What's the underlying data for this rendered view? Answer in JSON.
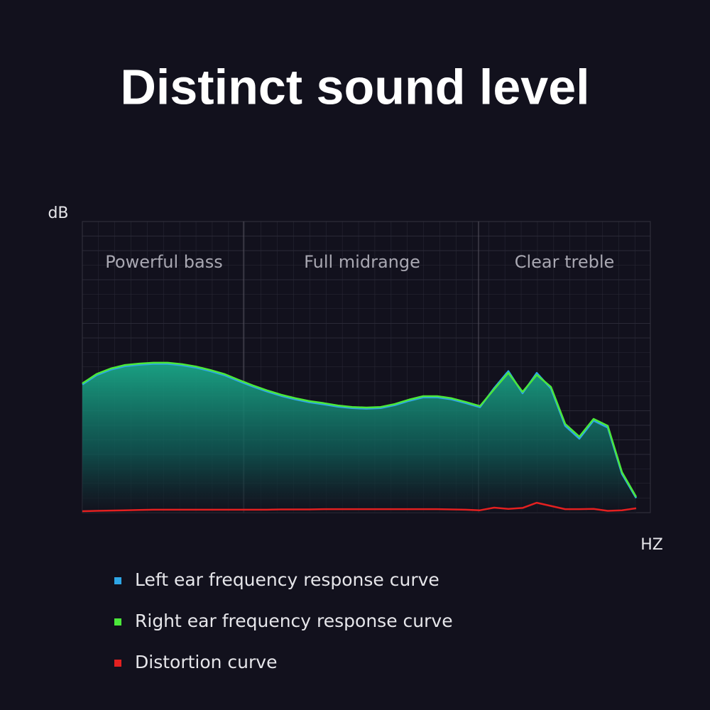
{
  "chart_data": {
    "type": "line",
    "title": "Distinct sound level",
    "y_label": "dB",
    "x_label": "HZ",
    "annotations": [
      "Powerful bass",
      "Full midrange",
      "Clear treble"
    ],
    "categories": [
      null,
      null,
      null,
      null,
      null,
      null,
      null,
      null,
      null,
      null,
      null,
      null,
      null,
      null,
      null,
      null,
      null,
      null,
      null,
      null,
      null,
      null,
      null,
      null,
      null,
      null,
      null,
      null,
      null,
      null,
      null,
      null,
      null,
      null,
      null,
      null,
      null,
      null,
      null,
      null
    ],
    "ylim": [
      0,
      100
    ],
    "grid": true,
    "series": [
      {
        "name": "Left ear frequency response curve",
        "color": "#2ea6e6",
        "values": [
          44.0,
          47.2,
          49.1,
          50.3,
          50.8,
          51.1,
          51.1,
          50.6,
          49.8,
          48.6,
          47.2,
          45.2,
          43.3,
          41.6,
          40.1,
          38.9,
          37.9,
          37.2,
          36.4,
          35.9,
          35.7,
          35.9,
          36.9,
          38.4,
          39.6,
          39.6,
          38.9,
          37.6,
          36.2,
          42.8,
          48.6,
          41.0,
          48.0,
          42.6,
          29.8,
          25.4,
          31.6,
          29.2,
          13.3,
          5.0
        ]
      },
      {
        "name": "Right ear frequency response curve",
        "color": "#4be83a",
        "values": [
          44.4,
          47.6,
          49.5,
          50.7,
          51.2,
          51.5,
          51.5,
          51.0,
          50.2,
          49.0,
          47.6,
          45.6,
          43.7,
          42.0,
          40.5,
          39.3,
          38.3,
          37.6,
          36.8,
          36.3,
          36.1,
          36.3,
          37.3,
          38.8,
          40.0,
          40.0,
          39.3,
          38.0,
          36.6,
          42.4,
          48.0,
          41.5,
          47.3,
          43.2,
          30.5,
          26.1,
          32.2,
          29.8,
          13.9,
          5.4
        ]
      },
      {
        "name": "Distortion curve",
        "color": "#e32020",
        "values": [
          0.5,
          0.6,
          0.7,
          0.8,
          0.9,
          1.0,
          1.0,
          1.0,
          1.0,
          1.0,
          1.0,
          1.0,
          1.0,
          1.0,
          1.1,
          1.1,
          1.1,
          1.2,
          1.2,
          1.2,
          1.2,
          1.2,
          1.2,
          1.2,
          1.2,
          1.2,
          1.1,
          1.0,
          0.8,
          1.7,
          1.3,
          1.6,
          3.4,
          2.3,
          1.2,
          1.2,
          1.3,
          0.6,
          0.8,
          1.5
        ]
      }
    ]
  }
}
